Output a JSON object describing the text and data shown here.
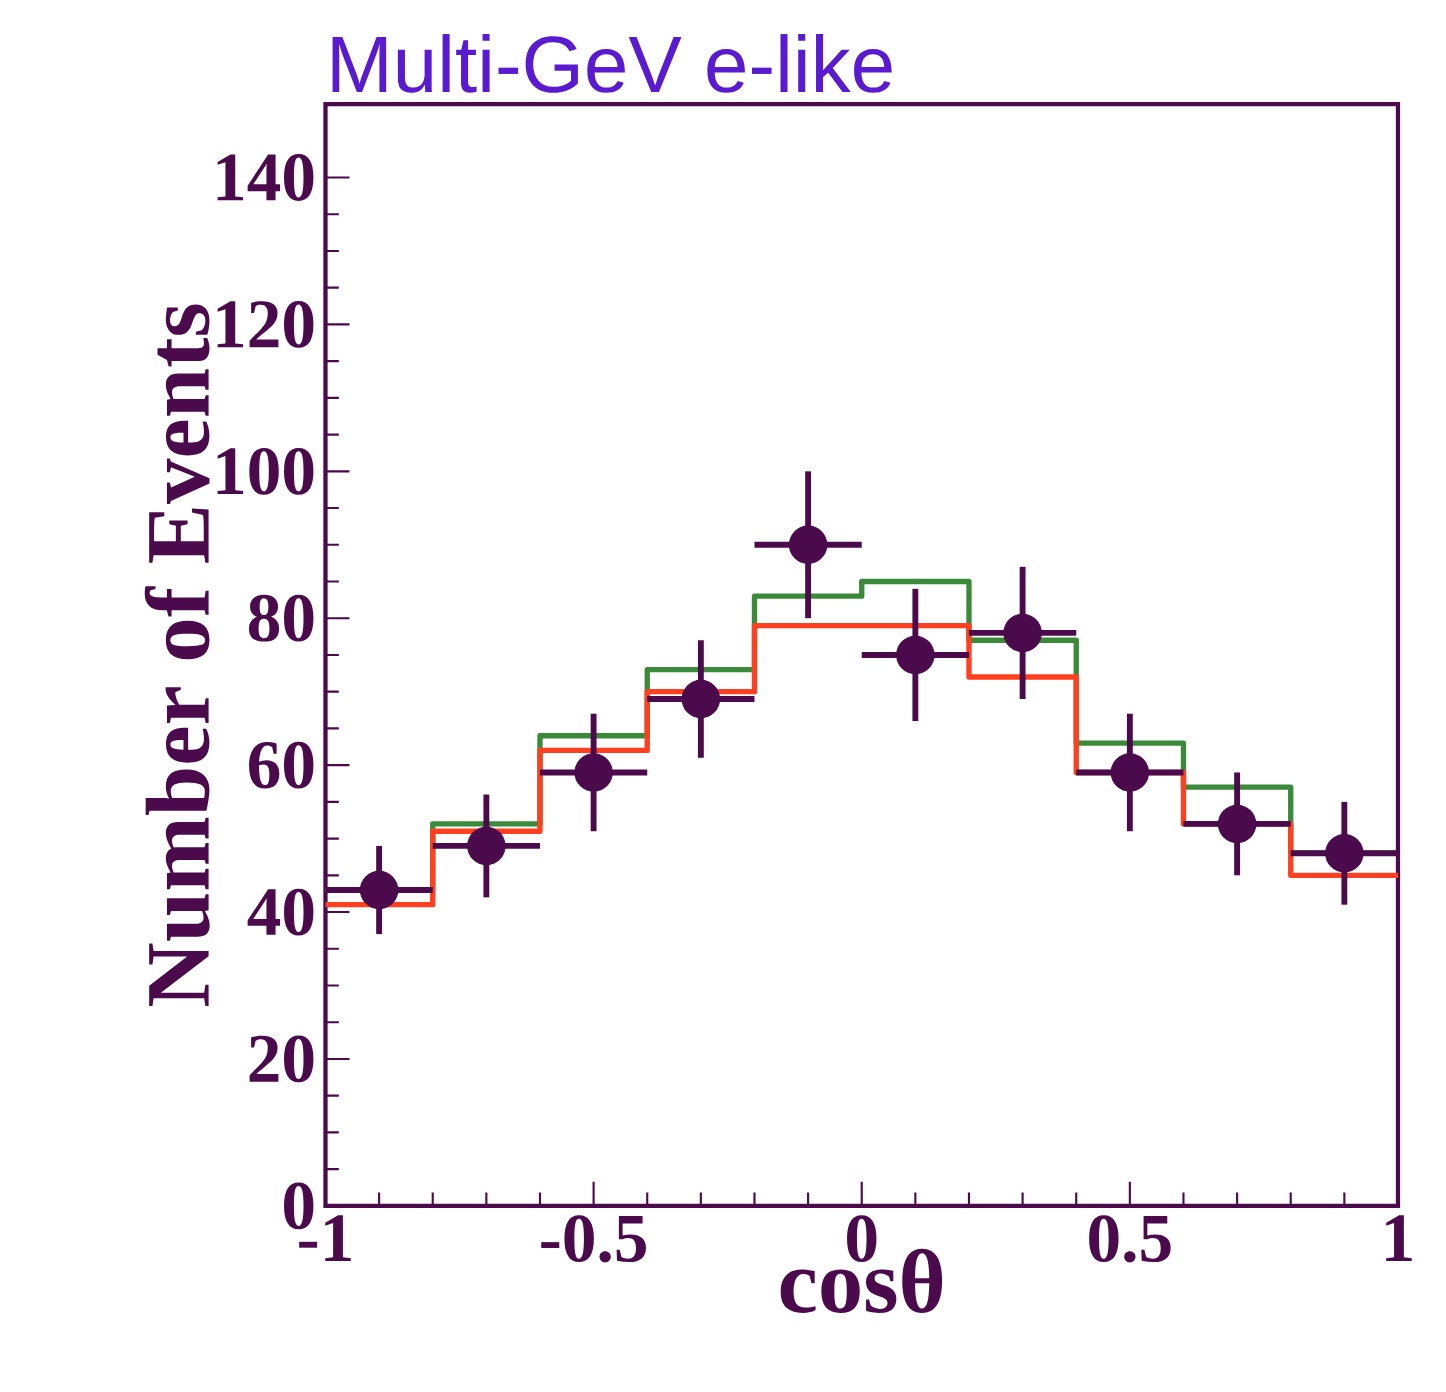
{
  "chart_data": {
    "type": "scatter",
    "title": "Multi-GeV e-like",
    "xlabel": "cosθ",
    "ylabel": "Number of Events",
    "marker": "circle",
    "xlim": [
      -1,
      1
    ],
    "ylim": [
      0,
      150
    ],
    "xticks": [
      -1,
      -0.5,
      0,
      0.5,
      1
    ],
    "yticks": [
      0,
      20,
      40,
      60,
      80,
      100,
      120,
      140
    ],
    "series": [
      {
        "type": "histogram",
        "color": "#3a8a3a",
        "bins": [
          -1,
          -0.8,
          -0.6,
          -0.4,
          -0.2,
          0,
          0.2,
          0.4,
          0.6,
          0.8,
          1
        ],
        "values": [
          43,
          52,
          64,
          73,
          83,
          85,
          77,
          63,
          57,
          48
        ]
      },
      {
        "type": "histogram",
        "color": "#ff4020",
        "bins": [
          -1,
          -0.8,
          -0.6,
          -0.4,
          -0.2,
          0,
          0.2,
          0.4,
          0.6,
          0.8,
          1
        ],
        "values": [
          41,
          51,
          62,
          70,
          79,
          79,
          72,
          59,
          52,
          45
        ]
      },
      {
        "color": "#4b0a4b",
        "x": [
          -0.9,
          -0.7,
          -0.5,
          -0.3,
          -0.1,
          0.1,
          0.3,
          0.5,
          0.7,
          0.9
        ],
        "values": [
          43,
          49,
          59,
          69,
          90,
          75,
          78,
          59,
          52,
          48
        ],
        "errors": [
          6,
          7,
          8,
          8,
          10,
          9,
          9,
          8,
          7,
          7
        ],
        "xerrors": [
          0.1,
          0.1,
          0.1,
          0.1,
          0.1,
          0.1,
          0.1,
          0.1,
          0.1,
          0.1
        ]
      }
    ]
  }
}
